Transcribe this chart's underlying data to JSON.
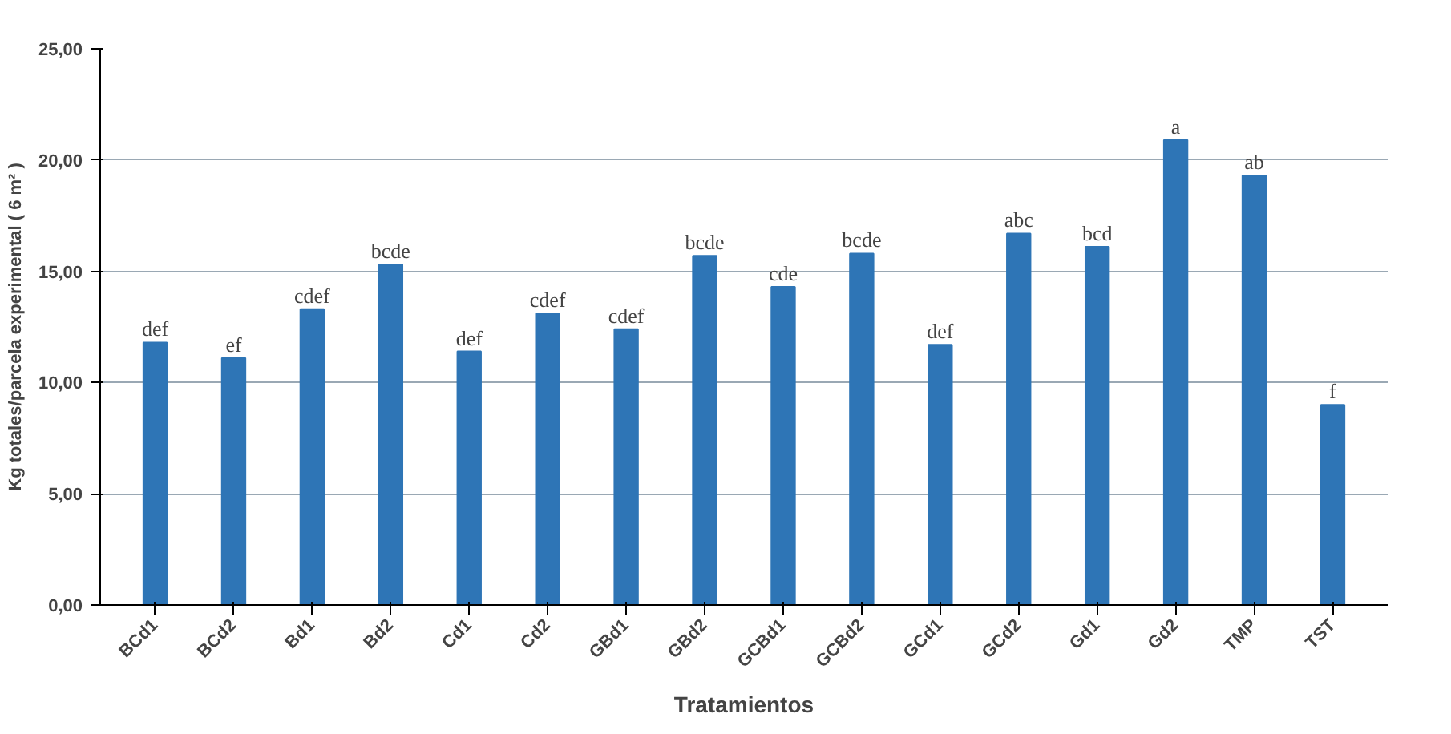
{
  "chart_data": {
    "type": "bar",
    "xlabel": "Tratamientos",
    "ylabel": "Kg totales/parcela experimental ( 6 m² )",
    "categories": [
      "BCd1",
      "BCd2",
      "Bd1",
      "Bd2",
      "Cd1",
      "Cd2",
      "GBd1",
      "GBd2",
      "GCBd1",
      "GCBd2",
      "GCd1",
      "GCd2",
      "Gd1",
      "Gd2",
      "TMP",
      "TST"
    ],
    "values": [
      11.8,
      11.1,
      13.3,
      15.3,
      11.4,
      13.1,
      12.4,
      15.7,
      14.3,
      15.8,
      11.7,
      16.7,
      16.1,
      20.9,
      19.3,
      9.0
    ],
    "color": "#2e75b6",
    "ylim": [
      0,
      25
    ],
    "yticks": [
      {
        "value": 0,
        "label": "0,00"
      },
      {
        "value": 5,
        "label": "5,00"
      },
      {
        "value": 10,
        "label": "10,00"
      },
      {
        "value": 15,
        "label": "15,00"
      },
      {
        "value": 20,
        "label": "20,00"
      },
      {
        "value": 25,
        "label": "25,00"
      }
    ],
    "grid": "y",
    "annotations": [
      {
        "text": "def",
        "x": "BCd1",
        "y": 11.8
      },
      {
        "text": "ef",
        "x": "BCd2",
        "y": 11.1
      },
      {
        "text": "cdef",
        "x": "Bd1",
        "y": 13.3
      },
      {
        "text": "bcde",
        "x": "Bd2",
        "y": 15.3
      },
      {
        "text": "def",
        "x": "Cd1",
        "y": 11.4
      },
      {
        "text": "cdef",
        "x": "Cd2",
        "y": 13.1
      },
      {
        "text": "cdef",
        "x": "GBd1",
        "y": 12.4
      },
      {
        "text": "bcde",
        "x": "GBd2",
        "y": 15.7
      },
      {
        "text": "cde",
        "x": "GCBd1",
        "y": 14.3
      },
      {
        "text": "bcde",
        "x": "GCBd2",
        "y": 15.8
      },
      {
        "text": "def",
        "x": "GCd1",
        "y": 11.7
      },
      {
        "text": "abc",
        "x": "GCd2",
        "y": 16.7
      },
      {
        "text": "bcd",
        "x": "Gd1",
        "y": 16.1
      },
      {
        "text": "a",
        "x": "Gd2",
        "y": 20.9
      },
      {
        "text": "ab",
        "x": "TMP",
        "y": 19.3
      },
      {
        "text": "f",
        "x": "TST",
        "y": 9.0
      }
    ]
  }
}
